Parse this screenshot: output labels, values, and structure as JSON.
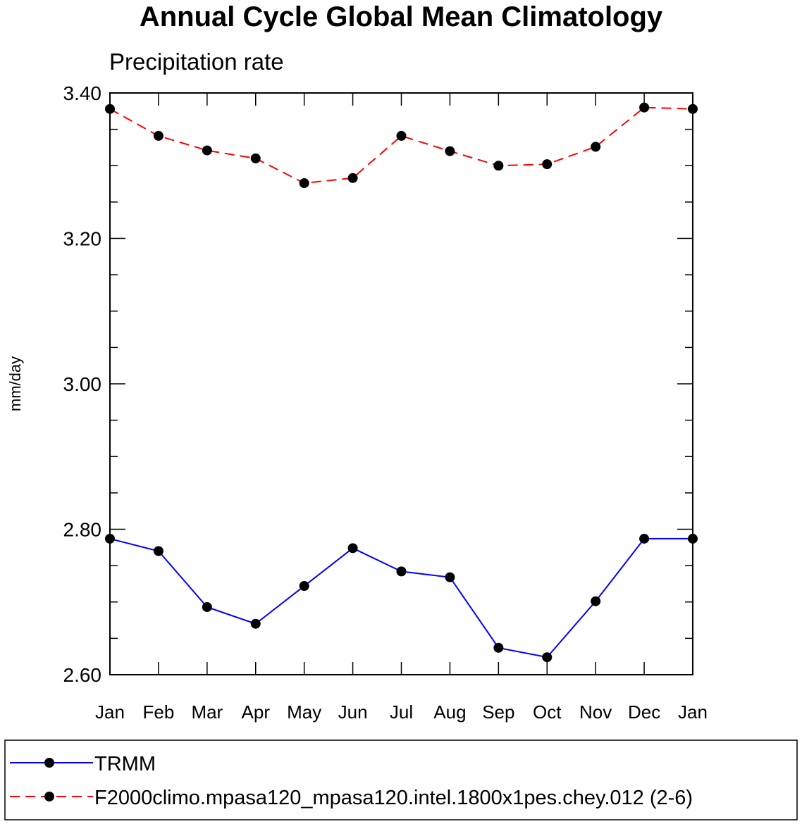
{
  "chart_data": {
    "type": "line",
    "title": "Annual Cycle Global Mean Climatology",
    "subtitle": "Precipitation rate",
    "xlabel": "",
    "ylabel": "mm/day",
    "categories": [
      "Jan",
      "Feb",
      "Mar",
      "Apr",
      "May",
      "Jun",
      "Jul",
      "Aug",
      "Sep",
      "Oct",
      "Nov",
      "Dec",
      "Jan"
    ],
    "ylim": [
      2.6,
      3.4
    ],
    "yticks": [
      2.6,
      2.8,
      3.0,
      3.2,
      3.4
    ],
    "ytick_labels": [
      "2.60",
      "2.80",
      "3.00",
      "3.20",
      "3.40"
    ],
    "yminor_step": 0.05,
    "series": [
      {
        "name": "TRMM",
        "color": "#0000ff",
        "dash": "solid",
        "marker": "filled-circle",
        "values": [
          2.787,
          2.77,
          2.693,
          2.67,
          2.722,
          2.774,
          2.742,
          2.734,
          2.637,
          2.624,
          2.701,
          2.787,
          2.787
        ]
      },
      {
        "name": "F2000climo.mpasa120_mpasa120.intel.1800x1pes.chey.012 (2-6)",
        "color": "#ff0000",
        "dash": "dashed",
        "marker": "filled-circle",
        "values": [
          3.378,
          3.341,
          3.321,
          3.31,
          3.276,
          3.283,
          3.341,
          3.32,
          3.3,
          3.302,
          3.326,
          3.38,
          3.378
        ]
      }
    ],
    "legend_position": "bottom"
  }
}
